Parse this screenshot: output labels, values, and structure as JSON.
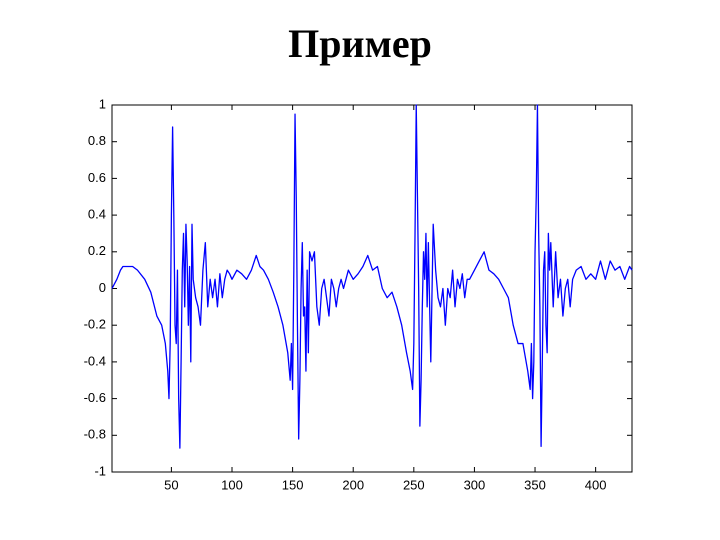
{
  "chart_data": {
    "type": "line",
    "title": "Пример",
    "color": "#0000ff",
    "x": [
      1,
      5,
      8,
      10,
      18,
      22,
      28,
      33,
      38,
      42,
      45,
      47,
      48,
      49,
      50,
      51,
      52,
      53,
      54,
      55,
      56,
      57,
      58,
      59,
      60,
      61,
      62,
      63,
      64,
      65,
      66,
      67,
      68,
      70,
      72,
      74,
      76,
      78,
      80,
      82,
      84,
      86,
      88,
      90,
      92,
      94,
      96,
      98,
      100,
      104,
      108,
      112,
      116,
      120,
      123,
      126,
      130,
      134,
      138,
      142,
      146,
      148,
      149,
      150,
      151,
      152,
      153,
      154,
      155,
      156,
      157,
      158,
      159,
      160,
      161,
      162,
      163,
      164,
      166,
      168,
      170,
      172,
      174,
      176,
      178,
      180,
      182,
      184,
      186,
      188,
      190,
      192,
      196,
      200,
      204,
      208,
      212,
      216,
      220,
      224,
      228,
      232,
      236,
      240,
      244,
      247,
      249,
      250,
      251,
      252,
      253,
      254,
      255,
      256,
      257,
      258,
      259,
      260,
      261,
      262,
      264,
      266,
      268,
      270,
      272,
      274,
      276,
      278,
      280,
      282,
      284,
      286,
      288,
      290,
      292,
      294,
      296,
      300,
      304,
      308,
      312,
      316,
      320,
      324,
      328,
      332,
      336,
      340,
      344,
      346,
      347,
      348,
      349,
      350,
      351,
      352,
      353,
      354,
      355,
      356,
      357,
      358,
      359,
      360,
      361,
      362,
      363,
      365,
      367,
      369,
      371,
      373,
      375,
      377,
      379,
      381,
      384,
      388,
      392,
      396,
      400,
      404,
      408,
      412,
      416,
      420,
      424,
      428,
      430
    ],
    "values": [
      0,
      0.05,
      0.1,
      0.12,
      0.12,
      0.1,
      0.05,
      -0.02,
      -0.15,
      -0.2,
      -0.3,
      -0.45,
      -0.6,
      -0.3,
      0.4,
      0.88,
      0.4,
      -0.2,
      -0.3,
      0.1,
      -0.6,
      -0.87,
      -0.4,
      0.1,
      0.3,
      -0.1,
      0.35,
      0.15,
      -0.2,
      0.12,
      -0.4,
      0.35,
      0.05,
      -0.05,
      -0.1,
      -0.2,
      0.1,
      0.25,
      -0.1,
      0.05,
      -0.05,
      0.05,
      -0.1,
      0.08,
      -0.05,
      0.05,
      0.1,
      0.08,
      0.05,
      0.1,
      0.08,
      0.05,
      0.1,
      0.18,
      0.12,
      0.1,
      0.05,
      -0.02,
      -0.1,
      -0.2,
      -0.35,
      -0.5,
      -0.3,
      -0.55,
      0.1,
      0.95,
      0.5,
      -0.2,
      -0.82,
      -0.5,
      0,
      0.25,
      -0.15,
      -0.1,
      -0.45,
      0.1,
      -0.35,
      0.2,
      0.15,
      0.2,
      -0.1,
      -0.2,
      0,
      0.05,
      -0.05,
      -0.15,
      0.05,
      0,
      -0.1,
      0,
      0.05,
      0,
      0.1,
      0.05,
      0.08,
      0.12,
      0.18,
      0.1,
      0.12,
      0,
      -0.05,
      -0.02,
      -0.1,
      -0.2,
      -0.35,
      -0.45,
      -0.55,
      -0.3,
      0.3,
      1,
      0.5,
      0,
      -0.75,
      -0.5,
      -0.1,
      0.2,
      0.05,
      0.3,
      -0.1,
      0.25,
      -0.4,
      0.35,
      0.1,
      -0.05,
      -0.1,
      0,
      -0.2,
      0,
      -0.05,
      0.1,
      -0.1,
      0.05,
      0,
      0.08,
      -0.05,
      0.05,
      0.05,
      0.1,
      0.15,
      0.2,
      0.1,
      0.08,
      0.05,
      0,
      -0.05,
      -0.2,
      -0.3,
      -0.3,
      -0.45,
      -0.55,
      -0.3,
      -0.6,
      -0.4,
      0.2,
      0.5,
      1,
      0.3,
      -0.1,
      -0.86,
      -0.4,
      0.1,
      0.2,
      -0.2,
      -0.35,
      0.3,
      0.1,
      0.25,
      -0.1,
      0.2,
      -0.05,
      0.05,
      -0.15,
      0,
      0.05,
      -0.1,
      0.05,
      0.1,
      0.12,
      0.05,
      0.08,
      0.05,
      0.15,
      0.05,
      0.15,
      0.1,
      0.12,
      0.05,
      0.12,
      0.1
    ],
    "xlim": [
      1,
      430
    ],
    "ylim": [
      -1,
      1
    ],
    "xticks": [
      50,
      100,
      150,
      200,
      250,
      300,
      350,
      400
    ],
    "yticks": [
      -1,
      -0.8,
      -0.6,
      -0.4,
      -0.2,
      0,
      0.2,
      0.4,
      0.6,
      0.8,
      1
    ]
  }
}
